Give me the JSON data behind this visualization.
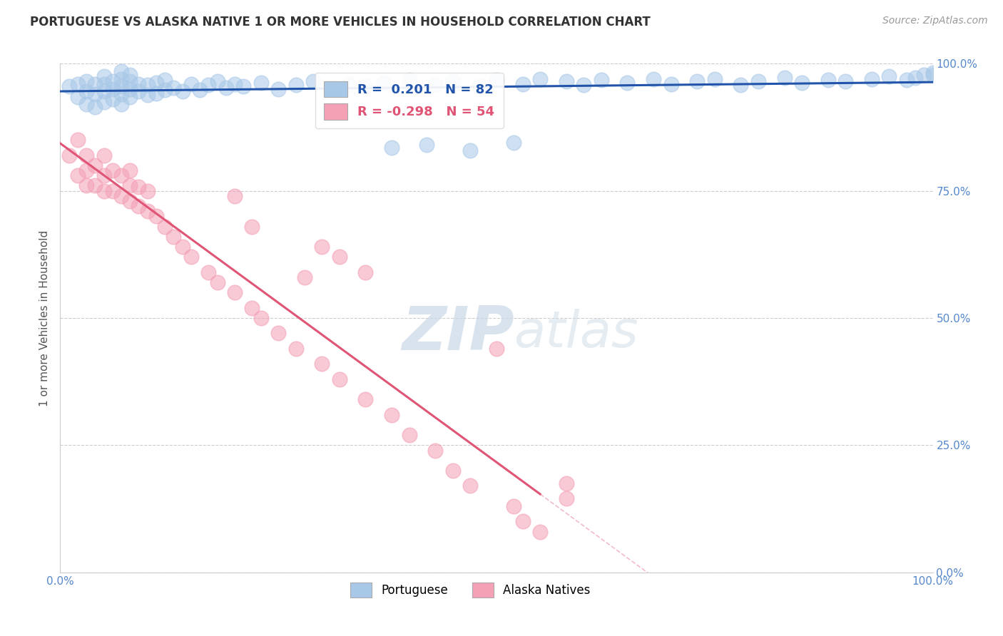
{
  "title": "PORTUGUESE VS ALASKA NATIVE 1 OR MORE VEHICLES IN HOUSEHOLD CORRELATION CHART",
  "source": "Source: ZipAtlas.com",
  "ylabel": "1 or more Vehicles in Household",
  "xlim": [
    0,
    1.0
  ],
  "ylim": [
    0,
    1.0
  ],
  "xtick_labels": [
    "0.0%",
    "100.0%"
  ],
  "ytick_labels": [
    "0.0%",
    "25.0%",
    "50.0%",
    "75.0%",
    "100.0%"
  ],
  "ytick_positions": [
    0.0,
    0.25,
    0.5,
    0.75,
    1.0
  ],
  "blue_r": 0.201,
  "blue_n": 82,
  "pink_r": -0.298,
  "pink_n": 54,
  "blue_color": "#a8c8e8",
  "pink_color": "#f4a0b5",
  "blue_line_color": "#2255aa",
  "pink_line_color": "#e05575",
  "watermark_zip": "ZIP",
  "watermark_atlas": "atlas",
  "background_color": "#ffffff",
  "grid_color": "#cccccc",
  "blue_scatter_x": [
    0.01,
    0.02,
    0.02,
    0.03,
    0.03,
    0.03,
    0.04,
    0.04,
    0.04,
    0.05,
    0.05,
    0.05,
    0.05,
    0.06,
    0.06,
    0.06,
    0.07,
    0.07,
    0.07,
    0.07,
    0.07,
    0.08,
    0.08,
    0.08,
    0.08,
    0.09,
    0.09,
    0.1,
    0.1,
    0.11,
    0.11,
    0.12,
    0.12,
    0.13,
    0.14,
    0.15,
    0.16,
    0.17,
    0.18,
    0.19,
    0.2,
    0.21,
    0.23,
    0.25,
    0.27,
    0.29,
    0.31,
    0.33,
    0.35,
    0.37,
    0.4,
    0.43,
    0.45,
    0.48,
    0.5,
    0.53,
    0.55,
    0.58,
    0.6,
    0.62,
    0.65,
    0.68,
    0.7,
    0.73,
    0.75,
    0.78,
    0.8,
    0.83,
    0.85,
    0.88,
    0.9,
    0.93,
    0.95,
    0.97,
    0.98,
    0.99,
    1.0,
    1.0,
    0.38,
    0.42,
    0.47,
    0.52
  ],
  "blue_scatter_y": [
    0.955,
    0.935,
    0.96,
    0.92,
    0.945,
    0.965,
    0.915,
    0.94,
    0.96,
    0.925,
    0.945,
    0.96,
    0.975,
    0.93,
    0.95,
    0.965,
    0.92,
    0.94,
    0.955,
    0.97,
    0.985,
    0.935,
    0.95,
    0.965,
    0.978,
    0.945,
    0.96,
    0.938,
    0.958,
    0.942,
    0.962,
    0.948,
    0.968,
    0.952,
    0.945,
    0.96,
    0.948,
    0.958,
    0.965,
    0.952,
    0.96,
    0.955,
    0.962,
    0.95,
    0.958,
    0.965,
    0.952,
    0.96,
    0.955,
    0.962,
    0.968,
    0.958,
    0.965,
    0.955,
    0.968,
    0.96,
    0.97,
    0.965,
    0.958,
    0.968,
    0.962,
    0.97,
    0.96,
    0.965,
    0.97,
    0.958,
    0.965,
    0.972,
    0.962,
    0.968,
    0.965,
    0.97,
    0.975,
    0.968,
    0.972,
    0.978,
    0.982,
    0.978,
    0.835,
    0.84,
    0.83,
    0.845
  ],
  "pink_scatter_x": [
    0.01,
    0.02,
    0.02,
    0.03,
    0.03,
    0.03,
    0.04,
    0.04,
    0.05,
    0.05,
    0.05,
    0.06,
    0.06,
    0.07,
    0.07,
    0.08,
    0.08,
    0.08,
    0.09,
    0.09,
    0.1,
    0.1,
    0.11,
    0.12,
    0.13,
    0.14,
    0.15,
    0.17,
    0.18,
    0.2,
    0.2,
    0.22,
    0.22,
    0.23,
    0.25,
    0.27,
    0.28,
    0.3,
    0.32,
    0.35,
    0.38,
    0.4,
    0.43,
    0.45,
    0.47,
    0.5,
    0.52,
    0.53,
    0.55,
    0.58,
    0.58,
    0.3,
    0.32,
    0.35
  ],
  "pink_scatter_y": [
    0.82,
    0.78,
    0.85,
    0.76,
    0.79,
    0.82,
    0.76,
    0.8,
    0.75,
    0.78,
    0.82,
    0.75,
    0.79,
    0.74,
    0.78,
    0.73,
    0.76,
    0.79,
    0.72,
    0.758,
    0.71,
    0.75,
    0.7,
    0.68,
    0.66,
    0.64,
    0.62,
    0.59,
    0.57,
    0.74,
    0.55,
    0.52,
    0.68,
    0.5,
    0.47,
    0.44,
    0.58,
    0.41,
    0.38,
    0.34,
    0.31,
    0.27,
    0.24,
    0.2,
    0.17,
    0.44,
    0.13,
    0.1,
    0.08,
    0.145,
    0.175,
    0.64,
    0.62,
    0.59
  ]
}
